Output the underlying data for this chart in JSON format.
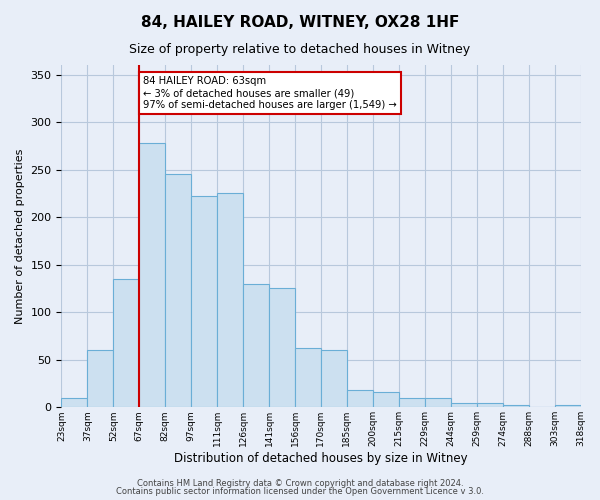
{
  "title": "84, HAILEY ROAD, WITNEY, OX28 1HF",
  "subtitle": "Size of property relative to detached houses in Witney",
  "xlabel": "Distribution of detached houses by size in Witney",
  "ylabel": "Number of detached properties",
  "bar_labels": [
    "23sqm",
    "37sqm",
    "52sqm",
    "67sqm",
    "82sqm",
    "97sqm",
    "111sqm",
    "126sqm",
    "141sqm",
    "156sqm",
    "170sqm",
    "185sqm",
    "200sqm",
    "215sqm",
    "229sqm",
    "244sqm",
    "259sqm",
    "274sqm",
    "288sqm",
    "303sqm",
    "318sqm"
  ],
  "bar_values": [
    10,
    60,
    135,
    278,
    245,
    222,
    225,
    130,
    125,
    62,
    60,
    18,
    16,
    10,
    10,
    4,
    5,
    2,
    0,
    2
  ],
  "bar_color": "#cce0f0",
  "bar_edge_color": "#6aaed6",
  "grid_color": "#b8c8dc",
  "background_color": "#e8eef8",
  "marker_line_color": "#cc0000",
  "marker_bin_index": 3,
  "annotation_text": "84 HAILEY ROAD: 63sqm\n← 3% of detached houses are smaller (49)\n97% of semi-detached houses are larger (1,549) →",
  "annotation_box_color": "#ffffff",
  "annotation_box_edge": "#cc0000",
  "ylim": [
    0,
    360
  ],
  "yticks": [
    0,
    50,
    100,
    150,
    200,
    250,
    300,
    350
  ],
  "footer1": "Contains HM Land Registry data © Crown copyright and database right 2024.",
  "footer2": "Contains public sector information licensed under the Open Government Licence v 3.0."
}
